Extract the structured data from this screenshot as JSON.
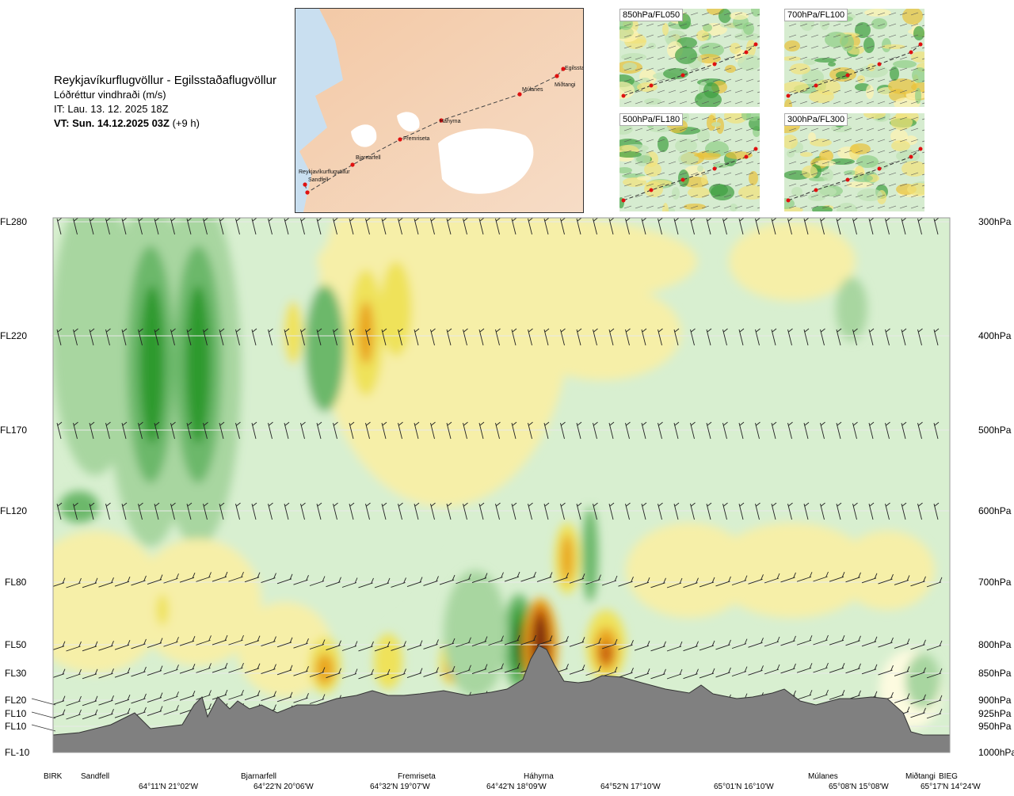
{
  "header": {
    "route": "Reykjavíkurflugvöllur - Egilsstaðaflugvöllur",
    "field": "Lóðréttur vindhraði (m/s)",
    "it": "IT: Lau. 13. 12. 2025 18Z",
    "vt_bold": "VT: Sun. 14.12.2025 03Z",
    "vt_offset": "(+9 h)"
  },
  "route_map": {
    "points": [
      {
        "name": "Reykjavíkurflugvöllur"
      },
      {
        "name": "Sandfell"
      },
      {
        "name": "Bjarnarfell"
      },
      {
        "name": "Fremriseta"
      },
      {
        "name": "Háhyrna"
      },
      {
        "name": "Múlanes"
      },
      {
        "name": "Miðtangi"
      },
      {
        "name": "Egilssta"
      }
    ]
  },
  "thumbnails": [
    {
      "label": "850hPa/FL050"
    },
    {
      "label": "700hPa/FL100"
    },
    {
      "label": "500hPa/FL180"
    },
    {
      "label": "300hPa/FL300"
    }
  ],
  "chart_data": {
    "type": "heatmap",
    "title": "Lóðréttur vindhraði (m/s)",
    "levels_fl": [
      "FL280",
      "FL220",
      "FL170",
      "FL120",
      "FL80",
      "FL50",
      "FL30",
      "FL20",
      "FL10",
      "FL10",
      "FL-10"
    ],
    "levels_hpa": [
      "300hPa",
      "400hPa",
      "500hPa",
      "600hPa",
      "700hPa",
      "800hPa",
      "850hPa",
      "900hPa",
      "925hPa",
      "950hPa",
      "1000hPa"
    ],
    "waypoints": [
      "BIRK",
      "Sandfell",
      "Bjarnarfell",
      "Fremriseta",
      "Háhyrna",
      "Miðtangi",
      "Múlanes",
      "BIEG"
    ],
    "coordinates": [
      "64°11'N 21°02'W",
      "64°22'N 20°06'W",
      "64°32'N 19°07'W",
      "64°42'N 18°09'W",
      "64°52'N 17°10'W",
      "65°01'N 16°10'W",
      "65°08'N 15°08'W",
      "65°17'N 14°24'W"
    ],
    "colors": {
      "strong_updraft": "#7a2e0a",
      "updraft_3": "#c75b10",
      "updraft_2": "#e9a51c",
      "updraft_1": "#efe25a",
      "weak_up": "#f6efa8",
      "neutral": "#fdfbe0",
      "weak_down": "#d8efd0",
      "downdraft_1": "#a8d6a0",
      "downdraft_2": "#6cb86a",
      "downdraft_3": "#2e9a2e",
      "strong_downdraft": "#0a6a20",
      "terrain": "#808080"
    }
  }
}
